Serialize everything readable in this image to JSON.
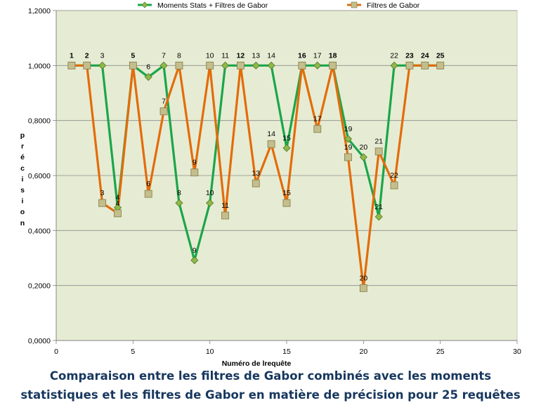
{
  "chart_data": {
    "type": "line",
    "title": "",
    "xlabel": "Numéro de lrequête",
    "ylabel": "précision",
    "xlim": [
      0,
      30
    ],
    "ylim": [
      0,
      1.2
    ],
    "x_ticks": [
      0,
      5,
      10,
      15,
      20,
      25,
      30
    ],
    "y_ticks": [
      0,
      0.2,
      0.4,
      0.6,
      0.8,
      1.0,
      1.2
    ],
    "x_tick_labels": [
      "0",
      "5",
      "10",
      "15",
      "20",
      "25",
      "30"
    ],
    "y_tick_labels": [
      "0,0000",
      "0,2000",
      "0,4000",
      "0,6000",
      "0,8000",
      "1,0000",
      "1,2000"
    ],
    "grid": "horizontal",
    "legend_position": "top",
    "plot_background": "#e6ecd3",
    "series": [
      {
        "name": "Moments Stats + Filtres de Gabor",
        "color": "#1aa64a",
        "marker": "diamond",
        "x": [
          1,
          2,
          3,
          4,
          5,
          6,
          7,
          8,
          9,
          10,
          11,
          12,
          13,
          14,
          15,
          16,
          17,
          18,
          19,
          20,
          21,
          22,
          23,
          24,
          25
        ],
        "y": [
          1.0,
          1.0,
          1.0,
          0.4833,
          1.0,
          0.9583,
          1.0,
          0.5,
          0.2917,
          0.5,
          1.0,
          1.0,
          1.0,
          1.0,
          0.7,
          1.0,
          1.0,
          1.0,
          0.7333,
          0.6667,
          0.45,
          1.0,
          1.0,
          1.0,
          1.0
        ],
        "labels": [
          "1",
          "2",
          "3",
          "4",
          "5",
          "6",
          "7",
          "8",
          "9",
          "10",
          "11",
          "12",
          "13",
          "14",
          "15",
          "16",
          "17",
          "18",
          "19",
          "20",
          "21",
          "22",
          "23",
          "24",
          "25"
        ]
      },
      {
        "name": "Filtres de Gabor",
        "color": "#e36c0a",
        "marker": "square",
        "x": [
          1,
          2,
          3,
          4,
          5,
          6,
          7,
          8,
          9,
          10,
          11,
          12,
          13,
          14,
          15,
          16,
          17,
          18,
          19,
          20,
          21,
          22,
          23,
          24,
          25
        ],
        "y": [
          1.0,
          1.0,
          0.5,
          0.4625,
          1.0,
          0.5333,
          0.8333,
          1.0,
          0.6111,
          1.0,
          0.4545,
          1.0,
          0.5714,
          0.7143,
          0.5,
          1.0,
          0.7692,
          1.0,
          0.6667,
          0.1905,
          0.6875,
          0.5641,
          1.0,
          1.0,
          1.0
        ],
        "labels": [
          "1",
          "2",
          "3",
          "4",
          "5",
          "6",
          "7",
          "8",
          "9",
          "10",
          "11",
          "12",
          "13",
          "14",
          "15",
          "16",
          "17",
          "18",
          "19",
          "20",
          "21",
          "22",
          "23",
          "24",
          "25"
        ]
      }
    ]
  },
  "caption": {
    "line1": "Comparaison  entre les filtres de Gabor combinés avec les moments",
    "line2": "statistiques et les filtres de Gabor en matière de précision pour 25 requêtes"
  }
}
